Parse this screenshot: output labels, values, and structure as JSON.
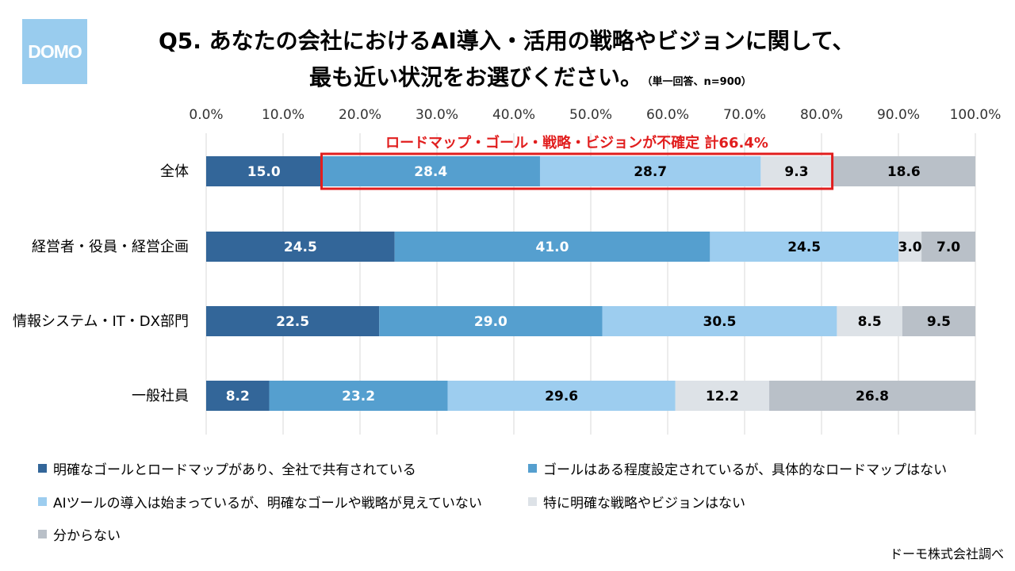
{
  "logo": {
    "text": "DOMO"
  },
  "title": {
    "line1": "Q5. あなたの会社におけるAI導入・活用の戦略やビジョンに関して、",
    "line2": "最も近い状況をお選びください。",
    "note": "（単一回答、n=900）"
  },
  "annotation": {
    "text": "ロードマップ・ゴール・戦略・ビジョンが不確定 計66.4%",
    "color": "#e11e1e"
  },
  "source": "ドーモ株式会社調べ",
  "chart_data": {
    "type": "bar",
    "orientation": "horizontal",
    "stacked": true,
    "xlim": [
      0,
      100
    ],
    "tick_labels": [
      "0.0%",
      "10.0%",
      "20.0%",
      "30.0%",
      "40.0%",
      "50.0%",
      "60.0%",
      "70.0%",
      "80.0%",
      "90.0%",
      "100.0%"
    ],
    "categories": [
      "全体",
      "経営者・役員・経営企画",
      "情報システム・IT・DX部門",
      "一般社員"
    ],
    "series": [
      {
        "name": "明確なゴールとロードマップがあり、全社で共有されている",
        "color": "#336699",
        "label_color": "#ffffff",
        "values": [
          15.0,
          24.5,
          22.5,
          8.2
        ]
      },
      {
        "name": "ゴールはある程度設定されているが、具体的なロードマップはない",
        "color": "#559fcf",
        "label_color": "#ffffff",
        "values": [
          28.4,
          41.0,
          29.0,
          23.2
        ]
      },
      {
        "name": "AIツールの導入は始まっているが、明確なゴールや戦略が見えていない",
        "color": "#9dcdef",
        "label_color": "#000000",
        "values": [
          28.7,
          24.5,
          30.5,
          29.6
        ]
      },
      {
        "name": "特に明確な戦略やビジョンはない",
        "color": "#dde2e7",
        "label_color": "#000000",
        "values": [
          9.3,
          3.0,
          8.5,
          12.2
        ]
      },
      {
        "name": "分からない",
        "color": "#b9c0c8",
        "label_color": "#000000",
        "values": [
          18.6,
          7.0,
          9.5,
          26.8
        ]
      }
    ],
    "highlight": {
      "category": "全体",
      "series_from": 1,
      "series_to": 3,
      "total": "66.4%",
      "color": "#e11e1e"
    }
  }
}
